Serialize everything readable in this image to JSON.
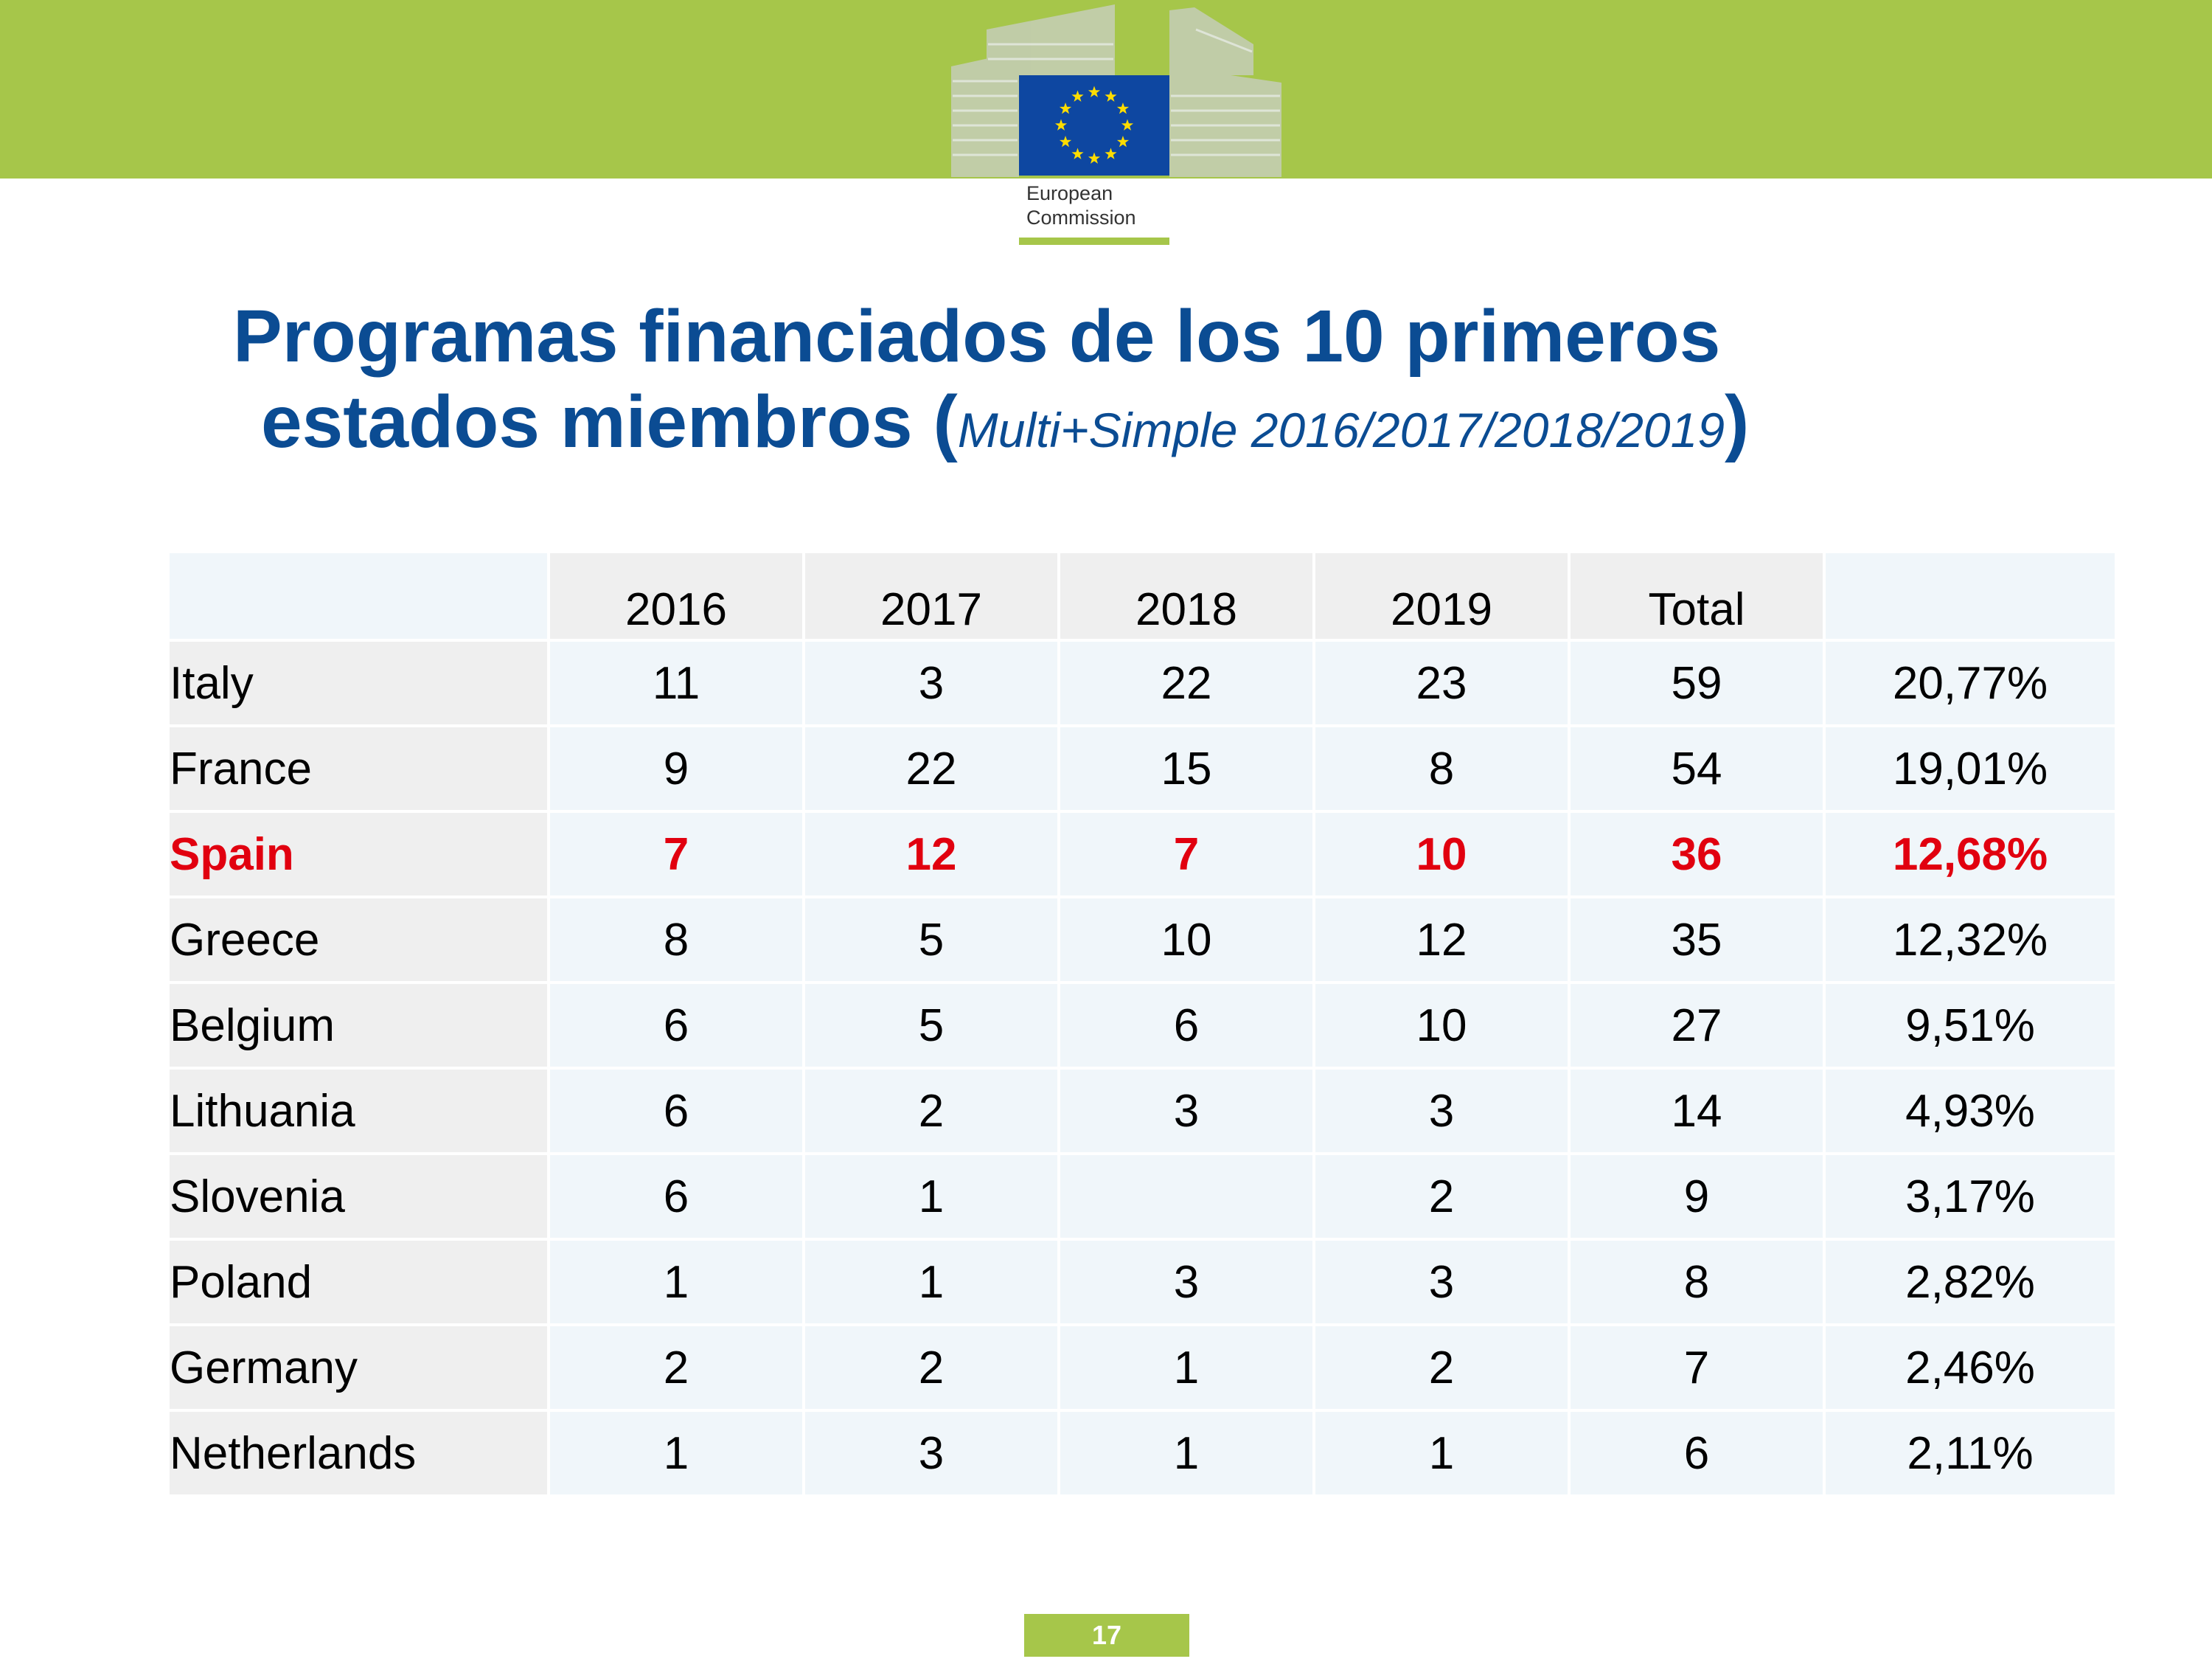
{
  "logo": {
    "line1": "European",
    "line2": "Commission"
  },
  "title": {
    "main_line1": "Programas financiados de los 10 primeros",
    "main_line2": "estados miembros",
    "paren_open": "(",
    "subtitle": "Multi+Simple 2016/2017/2018/2019",
    "paren_close": ")"
  },
  "table": {
    "header": [
      "",
      "2016",
      "2017",
      "2018",
      "2019",
      "Total",
      ""
    ],
    "rows": [
      [
        "Italy",
        "11",
        "3",
        "22",
        "23",
        "59",
        "20,77%"
      ],
      [
        "France",
        "9",
        "22",
        "15",
        "8",
        "54",
        "19,01%"
      ],
      [
        "Spain",
        "7",
        "12",
        "7",
        "10",
        "36",
        "12,68%"
      ],
      [
        "Greece",
        "8",
        "5",
        "10",
        "12",
        "35",
        "12,32%"
      ],
      [
        "Belgium",
        "6",
        "5",
        "6",
        "10",
        "27",
        "9,51%"
      ],
      [
        "Lithuania",
        "6",
        "2",
        "3",
        "3",
        "14",
        "4,93%"
      ],
      [
        "Slovenia",
        "6",
        "1",
        "",
        "2",
        "9",
        "3,17%"
      ],
      [
        "Poland",
        "1",
        "1",
        "3",
        "3",
        "8",
        "2,82%"
      ],
      [
        "Germany",
        "2",
        "2",
        "1",
        "2",
        "7",
        "2,46%"
      ],
      [
        "Netherlands",
        "1",
        "3",
        "1",
        "1",
        "6",
        "2,11%"
      ]
    ]
  },
  "page_number": "17",
  "colors": {
    "band": "#a6c64a",
    "title": "#0b4c93",
    "highlight": "#e1000f",
    "flag": "#0e47a1",
    "star": "#ffdd00"
  }
}
